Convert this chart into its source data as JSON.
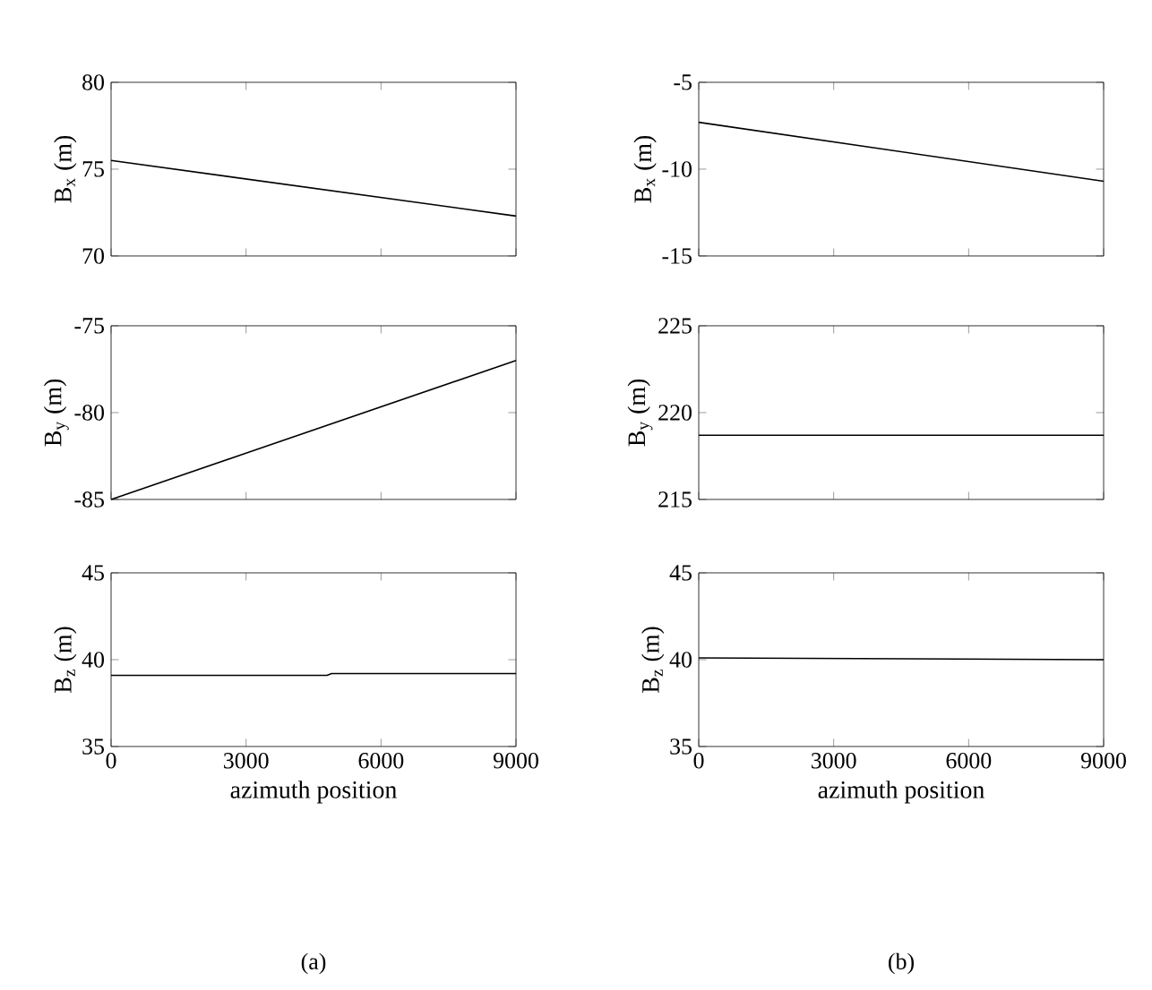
{
  "chart_data": [
    {
      "type": "line",
      "ylabel": "B$_{x}$  (m)",
      "x": [
        0,
        9000
      ],
      "values": [
        75.5,
        72.3
      ],
      "color": "#000000",
      "xlim": [
        0,
        9000
      ],
      "xticks": [
        0,
        3000,
        6000,
        9000
      ],
      "ylim": [
        70,
        80
      ],
      "yticks": [
        70,
        75,
        80
      ],
      "tick_labels": "y"
    },
    {
      "type": "line",
      "ylabel": "B$_{x}$  (m)",
      "x": [
        0,
        9000
      ],
      "values": [
        -7.3,
        -10.7
      ],
      "color": "#000000",
      "xlim": [
        0,
        9000
      ],
      "xticks": [
        0,
        3000,
        6000,
        9000
      ],
      "ylim": [
        -15,
        -5
      ],
      "yticks": [
        -15,
        -10,
        -5
      ],
      "tick_labels": "y"
    },
    {
      "type": "line",
      "ylabel": "B$_{y}$  (m)",
      "x": [
        0,
        9000
      ],
      "values": [
        -85,
        -77
      ],
      "color": "#000000",
      "xlim": [
        0,
        9000
      ],
      "xticks": [
        0,
        3000,
        6000,
        9000
      ],
      "ylim": [
        -85,
        -75
      ],
      "yticks": [
        -85,
        -80,
        -75
      ],
      "tick_labels": "y"
    },
    {
      "type": "line",
      "ylabel": "B$_{y}$  (m)",
      "x": [
        0,
        9000
      ],
      "values": [
        218.7,
        218.7
      ],
      "color": "#000000",
      "xlim": [
        0,
        9000
      ],
      "xticks": [
        0,
        3000,
        6000,
        9000
      ],
      "ylim": [
        215,
        225
      ],
      "yticks": [
        215,
        220,
        225
      ],
      "tick_labels": "y"
    },
    {
      "type": "line",
      "ylabel": "B$_{z}$  (m)",
      "xlabel": "azimuth position",
      "annotations": [
        "(a)"
      ],
      "x": [
        0,
        4800,
        4900,
        9000
      ],
      "values": [
        39.1,
        39.1,
        39.2,
        39.2
      ],
      "color": "#000000",
      "xlim": [
        0,
        9000
      ],
      "xticks": [
        0,
        3000,
        6000,
        9000
      ],
      "ylim": [
        35,
        45
      ],
      "yticks": [
        35,
        40,
        45
      ]
    },
    {
      "type": "line",
      "ylabel": "B$_{z}$  (m)",
      "xlabel": "azimuth position",
      "annotations": [
        "(b)"
      ],
      "x": [
        0,
        9000
      ],
      "values": [
        40.1,
        40.0
      ],
      "color": "#000000",
      "xlim": [
        0,
        9000
      ],
      "xticks": [
        0,
        3000,
        6000,
        9000
      ],
      "ylim": [
        35,
        45
      ],
      "yticks": [
        35,
        40,
        45
      ]
    }
  ]
}
